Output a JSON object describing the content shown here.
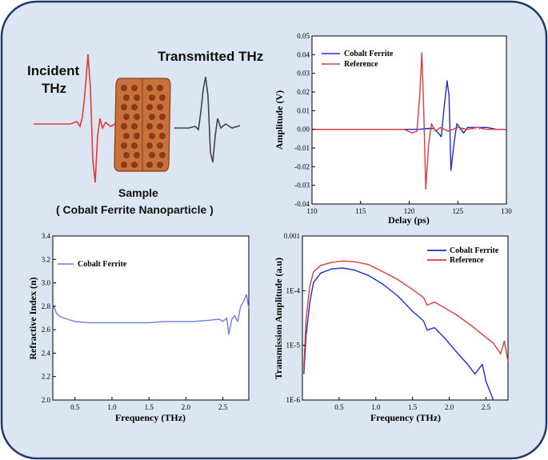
{
  "colors": {
    "panel_bg": "#dce6f2",
    "panel_border": "#1f3a68",
    "blue": "#1f2bd6",
    "red": "#e03a3a",
    "light_blue": "#6a7ff0",
    "sample_fill": "#c8713a",
    "sample_dots": "#8a3a1a"
  },
  "schematic": {
    "incident_line1": "Incident",
    "incident_line2": "THz",
    "transmitted_label": "Transmitted THz",
    "sample_label": "Sample",
    "sample_sublabel": "( Cobalt Ferrite Nanoparticle )"
  },
  "chart_data": [
    {
      "type": "line",
      "id": "time-domain",
      "xlabel": "Delay (ps)",
      "ylabel": "Amplitude (V)",
      "xlim": [
        110,
        130
      ],
      "ylim": [
        -0.04,
        0.05
      ],
      "xticks": [
        "110",
        "115",
        "120",
        "125",
        "130"
      ],
      "yticks": [
        "-0.04",
        "-0.03",
        "-0.02",
        "-0.01",
        "0.00",
        "0.01",
        "0.02",
        "0.03",
        "0.04",
        "0.05"
      ],
      "legend_position": "top-left",
      "series": [
        {
          "name": "Cobalt Ferrite",
          "color": "blue",
          "x": [
            110,
            118,
            121,
            122,
            122.5,
            123,
            123.3,
            123.6,
            123.9,
            124.1,
            124.3,
            124.6,
            124.9,
            125.2,
            125.6,
            126,
            127,
            128,
            129,
            130
          ],
          "y": [
            0,
            0,
            0,
            0.0005,
            0.0005,
            -0.002,
            -0.004,
            0.012,
            0.026,
            0.018,
            -0.022,
            -0.008,
            0.003,
            0.001,
            -0.002,
            0.001,
            0.001,
            0.001,
            0,
            0
          ]
        },
        {
          "name": "Reference",
          "color": "red",
          "x": [
            110,
            118,
            119.5,
            120.3,
            120.8,
            121.1,
            121.3,
            121.5,
            121.7,
            122,
            122.3,
            122.7,
            123.2,
            124,
            125,
            126,
            127,
            128,
            130
          ],
          "y": [
            0,
            0,
            0,
            -0.002,
            -0.001,
            0.02,
            0.041,
            0.01,
            -0.032,
            -0.008,
            0.003,
            -0.001,
            0.001,
            -0.001,
            0.001,
            0,
            0.001,
            0,
            0
          ]
        }
      ]
    },
    {
      "type": "line",
      "id": "refractive-index",
      "xlabel": "Frequency (THz)",
      "ylabel": "Refractive Index (n)",
      "xlim": [
        0.2,
        2.85
      ],
      "ylim": [
        2.0,
        3.4
      ],
      "xticks": [
        "0.5",
        "1.0",
        "1.5",
        "2.0",
        "2.5"
      ],
      "yticks": [
        "2.0",
        "2.2",
        "2.4",
        "2.6",
        "2.8",
        "3.0",
        "3.2",
        "3.4"
      ],
      "legend_position": "top-left",
      "series": [
        {
          "name": "Cobalt Ferrite",
          "color": "light_blue",
          "x": [
            0.2,
            0.25,
            0.3,
            0.4,
            0.5,
            0.7,
            0.9,
            1.1,
            1.3,
            1.5,
            1.7,
            1.9,
            2.1,
            2.3,
            2.45,
            2.5,
            2.55,
            2.58,
            2.62,
            2.66,
            2.7,
            2.74,
            2.78,
            2.82,
            2.85
          ],
          "y": [
            2.82,
            2.74,
            2.71,
            2.69,
            2.67,
            2.66,
            2.66,
            2.66,
            2.66,
            2.66,
            2.67,
            2.67,
            2.67,
            2.68,
            2.69,
            2.67,
            2.7,
            2.56,
            2.69,
            2.72,
            2.67,
            2.8,
            2.84,
            2.9,
            2.78
          ]
        }
      ]
    },
    {
      "type": "line",
      "id": "transmission",
      "xlabel": "Frequency (THz)",
      "ylabel": "Transmission Amplitude (a.u)",
      "xlim": [
        0,
        2.8
      ],
      "ylim": [
        1e-06,
        0.001
      ],
      "log_y": true,
      "xticks": [
        "0.5",
        "1.0",
        "1.5",
        "2.0",
        "2.5"
      ],
      "yticks": [
        "1E-6",
        "1E-5",
        "1E-4",
        "0.001"
      ],
      "legend_position": "top-right",
      "series": [
        {
          "name": "Cobalt Ferrite",
          "color": "blue",
          "x": [
            0.02,
            0.05,
            0.1,
            0.15,
            0.25,
            0.4,
            0.55,
            0.7,
            0.9,
            1.1,
            1.3,
            1.5,
            1.65,
            1.7,
            1.8,
            1.95,
            2.1,
            2.25,
            2.35,
            2.45,
            2.5,
            2.6
          ],
          "y": [
            3e-06,
            1.5e-05,
            6e-05,
            0.00014,
            0.00021,
            0.00025,
            0.00026,
            0.00024,
            0.00019,
            0.00013,
            8e-05,
            4.2e-05,
            2.8e-05,
            1.9e-05,
            2.1e-05,
            1.3e-05,
            7.5e-06,
            4.5e-06,
            3e-06,
            4.5e-06,
            2.2e-06,
            1e-06
          ]
        },
        {
          "name": "Reference",
          "color": "red",
          "x": [
            0.02,
            0.05,
            0.1,
            0.15,
            0.25,
            0.4,
            0.55,
            0.7,
            0.9,
            1.1,
            1.3,
            1.5,
            1.65,
            1.7,
            1.8,
            1.95,
            2.1,
            2.3,
            2.5,
            2.6,
            2.7,
            2.75,
            2.8
          ],
          "y": [
            4e-06,
            3e-05,
            0.00012,
            0.00022,
            0.00029,
            0.00033,
            0.00035,
            0.00034,
            0.0003,
            0.00022,
            0.00016,
            0.000105,
            7.5e-05,
            5.4e-05,
            6.2e-05,
            4.7e-05,
            3.6e-05,
            2.3e-05,
            1.4e-05,
            1.1e-05,
            7e-06,
            1.2e-05,
            5e-06
          ]
        }
      ]
    }
  ]
}
